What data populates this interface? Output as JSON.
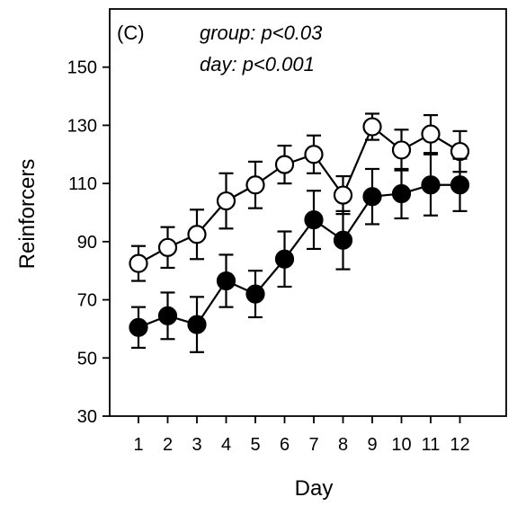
{
  "chart_data": {
    "type": "line",
    "panel_label": "(C)",
    "annotations": [
      "group: p<0.03",
      "day: p<0.001"
    ],
    "xlabel": "Day",
    "ylabel": "Reinforcers",
    "x": [
      1,
      2,
      3,
      4,
      5,
      6,
      7,
      8,
      9,
      10,
      11,
      12
    ],
    "x_tick_labels": [
      "1",
      "2",
      "3",
      "4",
      "5",
      "6",
      "7",
      "8",
      "9",
      "10",
      "11",
      "12"
    ],
    "ylim": [
      30,
      170
    ],
    "y_ticks": [
      30,
      50,
      70,
      90,
      110,
      130,
      150
    ],
    "y_tick_labels": [
      "30",
      "50",
      "70",
      "90",
      "110",
      "130",
      "150"
    ],
    "grid": false,
    "legend": "none",
    "series": [
      {
        "marker": "open-circle",
        "color": "#000000",
        "values": [
          82.5,
          88,
          92.5,
          104,
          109.5,
          116.5,
          120,
          106,
          129.5,
          121.5,
          127,
          121
        ],
        "errors": [
          6,
          7,
          8.5,
          9.5,
          8,
          6.5,
          6.5,
          6.5,
          4.5,
          7,
          6.5,
          7
        ]
      },
      {
        "marker": "filled-circle",
        "color": "#000000",
        "values": [
          60.5,
          64.5,
          61.5,
          76.5,
          72,
          84,
          97.5,
          90.5,
          105.5,
          106.5,
          109.5,
          109.5
        ],
        "errors": [
          7,
          8,
          9.5,
          9,
          8,
          9.5,
          10,
          10,
          9.5,
          8.5,
          10.5,
          9
        ]
      }
    ]
  }
}
